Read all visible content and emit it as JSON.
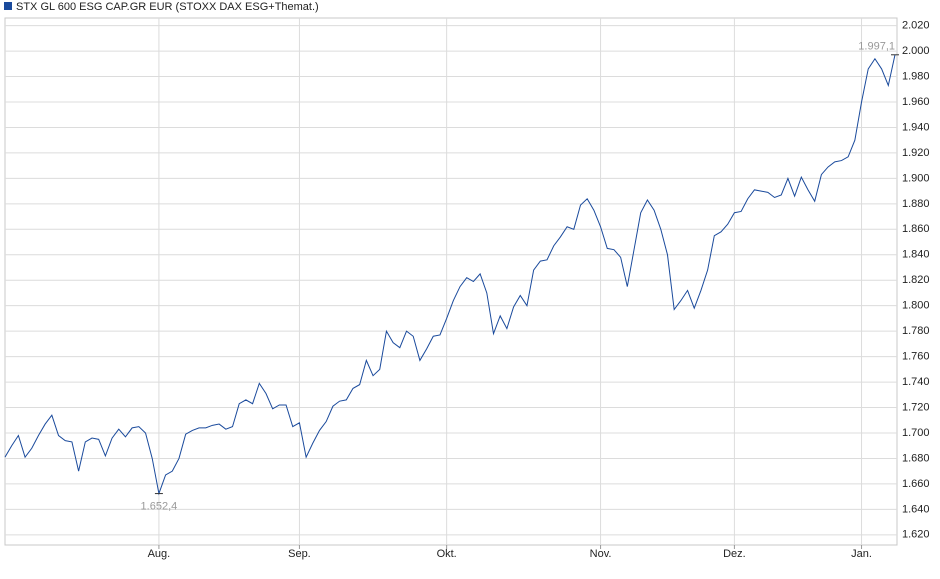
{
  "chart_data": {
    "type": "line",
    "series": [
      {
        "name": "STX GL 600 ESG CAP.GR EUR (STOXX DAX ESG+Themat.)",
        "color": "#1a4a9c",
        "values": [
          1681,
          1690,
          1698,
          1681,
          1688,
          1698,
          1707,
          1714,
          1698,
          1694,
          1693,
          1670,
          1693,
          1696,
          1695,
          1682,
          1696,
          1703,
          1697,
          1704,
          1705,
          1700,
          1680,
          1652.4,
          1667,
          1670,
          1680,
          1699,
          1702,
          1704,
          1704,
          1706,
          1707,
          1703,
          1705,
          1723,
          1726,
          1723,
          1739,
          1731,
          1719,
          1722,
          1722,
          1705,
          1708,
          1681,
          1692,
          1702,
          1709,
          1721,
          1725,
          1726,
          1735,
          1738,
          1757,
          1745,
          1750,
          1780,
          1771,
          1767,
          1780,
          1776,
          1757,
          1766,
          1776,
          1777,
          1790,
          1804,
          1815,
          1822,
          1819,
          1825,
          1810,
          1778,
          1792,
          1782,
          1799,
          1808,
          1800,
          1828,
          1835,
          1836,
          1847,
          1854,
          1862,
          1860,
          1879,
          1884,
          1875,
          1862,
          1845,
          1844,
          1838,
          1815,
          1844,
          1873,
          1883,
          1875,
          1860,
          1840,
          1797,
          1804,
          1812,
          1798,
          1812,
          1828,
          1855,
          1858,
          1864,
          1873,
          1874,
          1884,
          1891,
          1890,
          1889,
          1885,
          1887,
          1900,
          1886,
          1901,
          1891,
          1882,
          1903,
          1909,
          1913,
          1914,
          1917,
          1930,
          1960,
          1986,
          1994,
          1986,
          1973,
          1997.1
        ]
      }
    ],
    "categories": [
      null,
      null,
      null,
      null,
      null,
      null,
      null,
      null,
      null,
      null,
      null,
      null,
      null,
      null,
      null,
      null,
      null,
      null,
      null,
      null,
      null,
      null,
      null,
      "Aug.",
      null,
      null,
      null,
      null,
      null,
      null,
      null,
      null,
      null,
      null,
      null,
      null,
      null,
      null,
      null,
      null,
      null,
      null,
      null,
      null,
      "Sep.",
      null,
      null,
      null,
      null,
      null,
      null,
      null,
      null,
      null,
      null,
      null,
      null,
      null,
      null,
      null,
      null,
      null,
      null,
      null,
      null,
      null,
      "Okt.",
      null,
      null,
      null,
      null,
      null,
      null,
      null,
      null,
      null,
      null,
      null,
      null,
      null,
      null,
      null,
      null,
      null,
      null,
      null,
      null,
      null,
      null,
      "Nov.",
      null,
      null,
      null,
      null,
      null,
      null,
      null,
      null,
      null,
      null,
      null,
      null,
      null,
      null,
      null,
      null,
      null,
      null,
      null,
      "Dez.",
      null,
      null,
      null,
      null,
      null,
      null,
      null,
      null,
      null,
      null,
      null,
      null,
      null,
      null,
      null,
      null,
      null,
      null,
      "Jan.",
      null,
      null,
      null,
      null,
      null
    ],
    "ylim": [
      1612,
      2026
    ],
    "yticks": [
      {
        "value": 1620,
        "label": "1.620"
      },
      {
        "value": 1640,
        "label": "1.640"
      },
      {
        "value": 1660,
        "label": "1.660"
      },
      {
        "value": 1680,
        "label": "1.680"
      },
      {
        "value": 1700,
        "label": "1.700"
      },
      {
        "value": 1720,
        "label": "1.720"
      },
      {
        "value": 1740,
        "label": "1.740"
      },
      {
        "value": 1760,
        "label": "1.760"
      },
      {
        "value": 1780,
        "label": "1.780"
      },
      {
        "value": 1800,
        "label": "1.800"
      },
      {
        "value": 1820,
        "label": "1.820"
      },
      {
        "value": 1840,
        "label": "1.840"
      },
      {
        "value": 1860,
        "label": "1.860"
      },
      {
        "value": 1880,
        "label": "1.880"
      },
      {
        "value": 1900,
        "label": "1.900"
      },
      {
        "value": 1920,
        "label": "1.920"
      },
      {
        "value": 1940,
        "label": "1.940"
      },
      {
        "value": 1960,
        "label": "1.960"
      },
      {
        "value": 1980,
        "label": "1.980"
      },
      {
        "value": 2000,
        "label": "2.000"
      },
      {
        "value": 2020,
        "label": "2.020"
      }
    ],
    "annotations": [
      {
        "text": "1.652,4",
        "value": 1652.4
      },
      {
        "text": "1.997,1",
        "value": 1997.1
      }
    ],
    "grid": true
  }
}
